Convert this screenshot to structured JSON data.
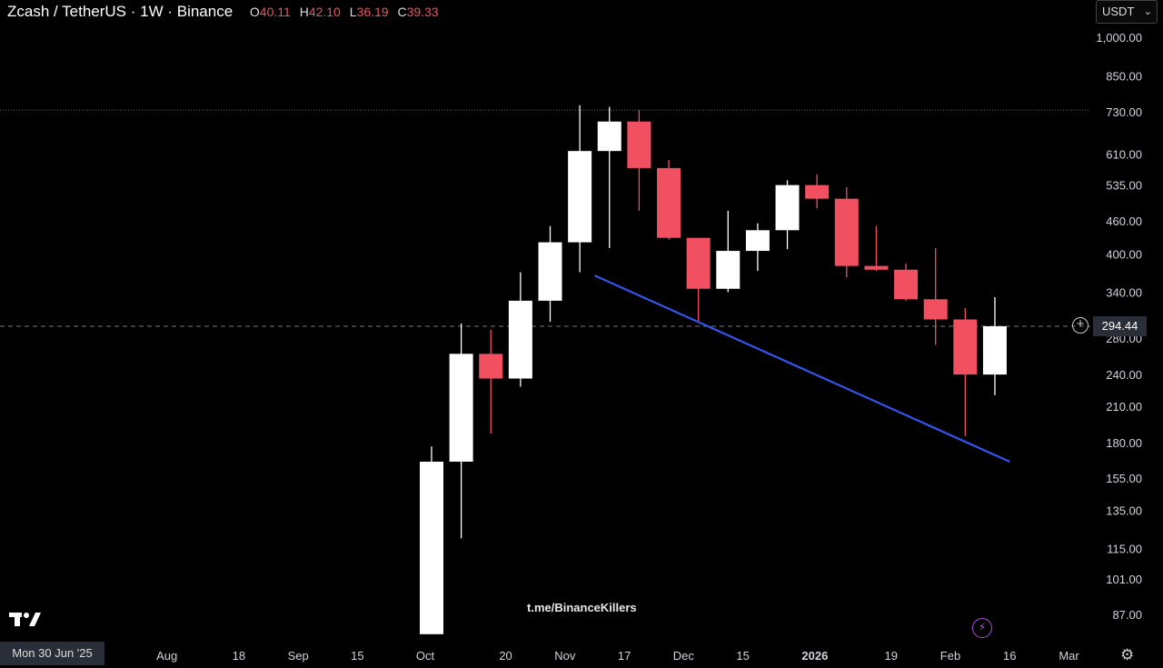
{
  "header": {
    "symbol": "Zcash / TetherUS · 1W · Binance",
    "ohlc": [
      {
        "key": "O",
        "value": "40.11"
      },
      {
        "key": "H",
        "value": "42.10"
      },
      {
        "key": "L",
        "value": "36.19"
      },
      {
        "key": "C",
        "value": "39.33"
      }
    ]
  },
  "currency": {
    "label": "USDT"
  },
  "watermark": "t.me/BinanceKillers",
  "cursor_date": "Mon 30 Jun '25",
  "current_price_label": "294.44",
  "colors": {
    "up": "#ffffff",
    "down": "#f0505f",
    "trendline": "#3355ee",
    "background": "#000000",
    "axis_text": "#d1d4dc"
  },
  "icons": {
    "logo": "tradingview-logo-icon",
    "add": "plus-circle-icon",
    "bolt": "lightning-icon",
    "settings": "gear-icon",
    "dropdown": "chevron-down-icon"
  },
  "chart_data": {
    "type": "candlestick",
    "scale": "log",
    "y_ticks": [
      87,
      101,
      115,
      135,
      155,
      180,
      210,
      240,
      280,
      340,
      400,
      460,
      535,
      610,
      730,
      850,
      1000
    ],
    "y_tick_labels": [
      "87.00",
      "101.00",
      "115.00",
      "135.00",
      "155.00",
      "180.00",
      "210.00",
      "240.00",
      "280.00",
      "340.00",
      "400.00",
      "460.00",
      "535.00",
      "610.00",
      "730.00",
      "850.00",
      "1,000.00"
    ],
    "x_labels": [
      {
        "label": "Aug",
        "date": "2025-08-01",
        "bold": false
      },
      {
        "label": "18",
        "date": "2025-08-18",
        "bold": false
      },
      {
        "label": "Sep",
        "date": "2025-09-01",
        "bold": false
      },
      {
        "label": "15",
        "date": "2025-09-15",
        "bold": false
      },
      {
        "label": "Oct",
        "date": "2025-10-01",
        "bold": false
      },
      {
        "label": "20",
        "date": "2025-10-20",
        "bold": false
      },
      {
        "label": "Nov",
        "date": "2025-11-03",
        "bold": false
      },
      {
        "label": "17",
        "date": "2025-11-17",
        "bold": false
      },
      {
        "label": "Dec",
        "date": "2025-12-01",
        "bold": false
      },
      {
        "label": "15",
        "date": "2025-12-15",
        "bold": false
      },
      {
        "label": "2026",
        "date": "2026-01-01",
        "bold": true
      },
      {
        "label": "19",
        "date": "2026-01-19",
        "bold": false
      },
      {
        "label": "Feb",
        "date": "2026-02-02",
        "bold": false
      },
      {
        "label": "16",
        "date": "2026-02-16",
        "bold": false
      },
      {
        "label": "Mar",
        "date": "2026-03-02",
        "bold": false
      }
    ],
    "candles": [
      {
        "date": "2025-09-29",
        "open": 80,
        "high": 177,
        "low": 80,
        "close": 166
      },
      {
        "date": "2025-10-06",
        "open": 166,
        "high": 298,
        "low": 120,
        "close": 262
      },
      {
        "date": "2025-10-13",
        "open": 262,
        "high": 290,
        "low": 187,
        "close": 236
      },
      {
        "date": "2025-10-20",
        "open": 236,
        "high": 370,
        "low": 228,
        "close": 328
      },
      {
        "date": "2025-10-27",
        "open": 328,
        "high": 450,
        "low": 300,
        "close": 420
      },
      {
        "date": "2025-11-03",
        "open": 420,
        "high": 750,
        "low": 370,
        "close": 618
      },
      {
        "date": "2025-11-10",
        "open": 618,
        "high": 745,
        "low": 410,
        "close": 700
      },
      {
        "date": "2025-11-17",
        "open": 700,
        "high": 735,
        "low": 480,
        "close": 575
      },
      {
        "date": "2025-11-24",
        "open": 575,
        "high": 595,
        "low": 425,
        "close": 428
      },
      {
        "date": "2025-12-01",
        "open": 428,
        "high": 428,
        "low": 300,
        "close": 345
      },
      {
        "date": "2025-12-08",
        "open": 345,
        "high": 480,
        "low": 340,
        "close": 405
      },
      {
        "date": "2025-12-15",
        "open": 405,
        "high": 455,
        "low": 372,
        "close": 442
      },
      {
        "date": "2025-12-22",
        "open": 442,
        "high": 546,
        "low": 408,
        "close": 535
      },
      {
        "date": "2025-12-29",
        "open": 535,
        "high": 560,
        "low": 485,
        "close": 505
      },
      {
        "date": "2026-01-05",
        "open": 505,
        "high": 530,
        "low": 362,
        "close": 380
      },
      {
        "date": "2026-01-12",
        "open": 380,
        "high": 450,
        "low": 372,
        "close": 374
      },
      {
        "date": "2026-01-19",
        "open": 374,
        "high": 384,
        "low": 328,
        "close": 330
      },
      {
        "date": "2026-01-26",
        "open": 330,
        "high": 410,
        "low": 272,
        "close": 303
      },
      {
        "date": "2026-02-02",
        "open": 303,
        "high": 318,
        "low": 185,
        "close": 240
      },
      {
        "date": "2026-02-09",
        "open": 240,
        "high": 333,
        "low": 220,
        "close": 294.44
      }
    ],
    "trendline": {
      "start": {
        "date": "2025-11-10",
        "price": 365
      },
      "end": {
        "date": "2026-02-16",
        "price": 166
      }
    },
    "high_line_price": 735,
    "current_price": 294.44
  }
}
